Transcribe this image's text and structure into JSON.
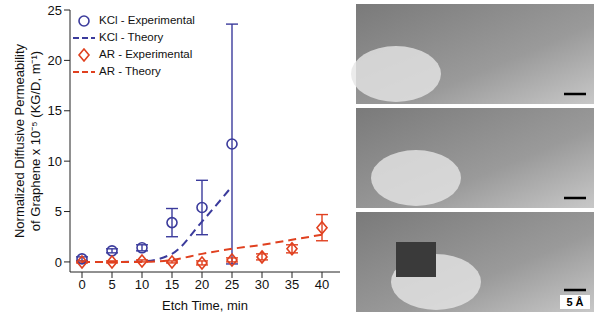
{
  "chart_data": {
    "type": "scatter",
    "x": [
      0,
      5,
      10,
      15,
      20,
      25,
      30,
      35,
      40
    ],
    "xlabel": "Etch Time, min",
    "ylabel": "Normalized Diffusive Permeability of Graphene x 10⁻⁵ (KG/D, m⁻¹)",
    "xlim": [
      -2,
      43
    ],
    "ylim": [
      -1,
      25
    ],
    "xticks": [
      0,
      5,
      10,
      15,
      20,
      25,
      30,
      35,
      40
    ],
    "yticks": [
      0,
      5,
      10,
      15,
      20,
      25
    ],
    "legend": "upper left",
    "series": [
      {
        "name": "KCl - Experimental",
        "type": "scatter",
        "marker": "circle",
        "color": "#3b3b9c",
        "values": [
          0.3,
          1.1,
          1.4,
          3.9,
          5.4,
          11.7,
          null,
          null,
          null
        ],
        "errors": [
          0.2,
          0.2,
          0.3,
          1.4,
          2.7,
          11.9,
          null,
          null,
          null
        ]
      },
      {
        "name": "KCl - Theory",
        "type": "line",
        "line_style": "dashed",
        "color": "#3b3b9c",
        "values": [
          0,
          0,
          0.05,
          0.8,
          4,
          7.5,
          null,
          null,
          null
        ]
      },
      {
        "name": "AR - Experimental",
        "type": "scatter",
        "marker": "diamond",
        "color": "#e0401f",
        "values": [
          0,
          0,
          0.1,
          0,
          -0.1,
          0.2,
          0.5,
          1.3,
          3.4
        ],
        "errors": [
          0.1,
          0.1,
          0.1,
          0.1,
          0.2,
          0.2,
          0.3,
          0.4,
          1.3
        ]
      },
      {
        "name": "AR - Theory",
        "type": "line",
        "line_style": "dashed",
        "color": "#e0401f",
        "values": [
          0,
          0,
          0,
          0.2,
          0.8,
          1.3,
          1.7,
          2.2,
          2.7
        ]
      }
    ],
    "annotations": [
      "5 Å"
    ]
  }
}
